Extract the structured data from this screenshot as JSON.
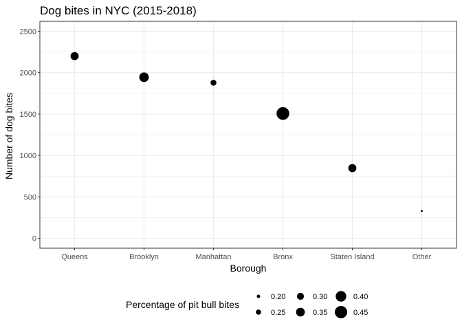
{
  "chart_data": {
    "type": "scatter",
    "title": "Dog bites in NYC (2015-2018)",
    "xlabel": "Borough",
    "ylabel": "Number of dog bites",
    "categories": [
      "Queens",
      "Brooklyn",
      "Manhattan",
      "Bronx",
      "Staten Island",
      "Other"
    ],
    "values": [
      2200,
      1945,
      1878,
      1507,
      847,
      329
    ],
    "size_values": [
      0.33,
      0.37,
      0.27,
      0.46,
      0.33,
      0.16
    ],
    "ylim": [
      -120,
      2620
    ],
    "yticks": [
      0,
      500,
      1000,
      1500,
      2000,
      2500
    ],
    "grid": true,
    "legend": {
      "title": "Percentage of pit bull bites",
      "position": "bottom",
      "entries": [
        {
          "label": "0.20",
          "value": 0.2
        },
        {
          "label": "0.25",
          "value": 0.25
        },
        {
          "label": "0.30",
          "value": 0.3
        },
        {
          "label": "0.35",
          "value": 0.35
        },
        {
          "label": "0.40",
          "value": 0.4
        },
        {
          "label": "0.45",
          "value": 0.45
        }
      ]
    },
    "colors": {
      "point": "#000000",
      "grid": "#ebebeb",
      "panel_border": "#333333"
    }
  }
}
